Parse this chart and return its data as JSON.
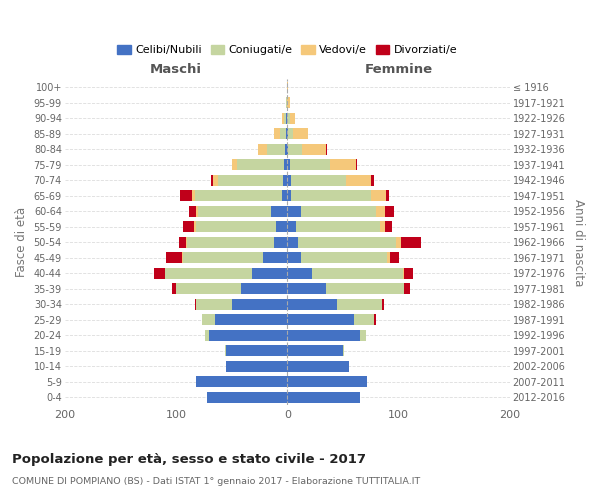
{
  "age_groups": [
    "0-4",
    "5-9",
    "10-14",
    "15-19",
    "20-24",
    "25-29",
    "30-34",
    "35-39",
    "40-44",
    "45-49",
    "50-54",
    "55-59",
    "60-64",
    "65-69",
    "70-74",
    "75-79",
    "80-84",
    "85-89",
    "90-94",
    "95-99",
    "100+"
  ],
  "birth_years": [
    "2012-2016",
    "2007-2011",
    "2002-2006",
    "1997-2001",
    "1992-1996",
    "1987-1991",
    "1982-1986",
    "1977-1981",
    "1972-1976",
    "1967-1971",
    "1962-1966",
    "1957-1961",
    "1952-1956",
    "1947-1951",
    "1942-1946",
    "1937-1941",
    "1932-1936",
    "1927-1931",
    "1922-1926",
    "1917-1921",
    "≤ 1916"
  ],
  "colors": {
    "celibi": "#4472c4",
    "coniugati": "#c5d5a0",
    "vedovi": "#f5c87a",
    "divorziati": "#c0001a"
  },
  "males": {
    "celibi": [
      72,
      82,
      55,
      55,
      70,
      65,
      50,
      42,
      32,
      22,
      12,
      10,
      15,
      5,
      4,
      3,
      2,
      1,
      1,
      0,
      0
    ],
    "coniugati": [
      0,
      0,
      0,
      1,
      4,
      12,
      32,
      58,
      78,
      72,
      78,
      72,
      65,
      78,
      58,
      42,
      16,
      6,
      2,
      1,
      0
    ],
    "vedovi": [
      0,
      0,
      0,
      0,
      0,
      0,
      0,
      0,
      0,
      1,
      1,
      2,
      2,
      3,
      5,
      5,
      8,
      5,
      2,
      0,
      0
    ],
    "divorziati": [
      0,
      0,
      0,
      0,
      0,
      0,
      1,
      4,
      10,
      14,
      6,
      10,
      6,
      10,
      2,
      0,
      0,
      0,
      0,
      0,
      0
    ]
  },
  "females": {
    "celibi": [
      65,
      72,
      55,
      50,
      65,
      60,
      45,
      35,
      22,
      12,
      10,
      8,
      12,
      3,
      3,
      2,
      1,
      1,
      0,
      0,
      0
    ],
    "coniugati": [
      0,
      0,
      0,
      1,
      6,
      18,
      40,
      70,
      82,
      78,
      88,
      75,
      68,
      72,
      50,
      36,
      12,
      4,
      2,
      0,
      0
    ],
    "vedovi": [
      0,
      0,
      0,
      0,
      0,
      0,
      0,
      0,
      1,
      2,
      4,
      5,
      8,
      14,
      22,
      24,
      22,
      14,
      5,
      2,
      1
    ],
    "divorziati": [
      0,
      0,
      0,
      0,
      0,
      2,
      2,
      5,
      8,
      8,
      18,
      6,
      8,
      2,
      3,
      1,
      1,
      0,
      0,
      0,
      0
    ]
  },
  "title": "Popolazione per età, sesso e stato civile - 2017",
  "subtitle": "COMUNE DI POMPIANO (BS) - Dati ISTAT 1° gennaio 2017 - Elaborazione TUTTITALIA.IT",
  "xlabel_left": "Maschi",
  "xlabel_right": "Femmine",
  "ylabel_left": "Fasce di età",
  "ylabel_right": "Anni di nascita",
  "xlim": 200,
  "legend_labels": [
    "Celibi/Nubili",
    "Coniugati/e",
    "Vedovi/e",
    "Divorziati/e"
  ],
  "background_color": "#ffffff",
  "grid_color": "#cccccc"
}
